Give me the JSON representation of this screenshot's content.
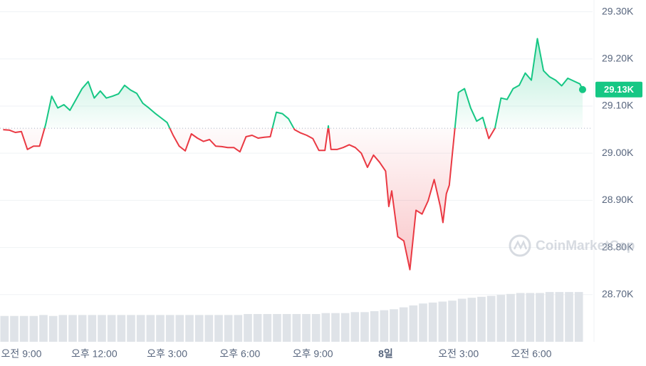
{
  "chart_data": {
    "type": "line",
    "xlim": [
      8.12,
      32.17
    ],
    "xticks": [
      {
        "value": 9,
        "label": "오전 9:00"
      },
      {
        "value": 12,
        "label": "오후 12:00"
      },
      {
        "value": 15,
        "label": "오후 3:00"
      },
      {
        "value": 18,
        "label": "오후 6:00"
      },
      {
        "value": 21,
        "label": "오후 9:00"
      },
      {
        "value": 24,
        "label": "8일"
      },
      {
        "value": 27,
        "label": "오전 3:00"
      },
      {
        "value": 30,
        "label": "오전 6:00"
      }
    ],
    "ylim": [
      28600,
      29325
    ],
    "yticks": [
      {
        "value": 29300,
        "label": "29.30K"
      },
      {
        "value": 29200,
        "label": "29.20K"
      },
      {
        "value": 29100,
        "label": "29.10K"
      },
      {
        "value": 29000,
        "label": "29.00K"
      },
      {
        "value": 28900,
        "label": "28.90K"
      },
      {
        "value": 28800,
        "label": "28.80K"
      },
      {
        "value": 28700,
        "label": "28.70K"
      }
    ],
    "y2lim": [
      0,
      100
    ],
    "grid": true,
    "reference_value": 29053,
    "last_price_label": "29.13K",
    "watermark": "CoinMarketCap",
    "series": [
      {
        "color_up": "#16c784",
        "color_down": "#ea3943",
        "x": [
          8.25,
          8.5,
          8.75,
          9,
          9.25,
          9.5,
          9.75,
          10,
          10.25,
          10.5,
          10.75,
          11,
          11.25,
          11.5,
          11.75,
          12,
          12.25,
          12.5,
          12.75,
          13,
          13.25,
          13.5,
          13.75,
          14,
          14.25,
          14.5,
          14.75,
          15,
          15.25,
          15.5,
          15.75,
          16,
          16.25,
          16.5,
          16.75,
          17,
          17.25,
          17.5,
          17.75,
          18,
          18.25,
          18.5,
          18.75,
          19,
          19.25,
          19.5,
          19.75,
          20,
          20.25,
          20.5,
          20.75,
          21,
          21.25,
          21.5,
          21.64,
          21.75,
          22,
          22.25,
          22.5,
          22.75,
          23,
          23.25,
          23.5,
          23.75,
          24,
          24.13,
          24.25,
          24.5,
          24.75,
          25,
          25.25,
          25.5,
          25.75,
          26,
          26.25,
          26.36,
          26.5,
          26.62,
          26.75,
          27,
          27.25,
          27.5,
          27.75,
          28,
          28.25,
          28.5,
          28.75,
          29,
          29.25,
          29.5,
          29.75,
          30,
          30.25,
          30.5,
          30.75,
          31,
          31.25,
          31.5,
          31.75,
          32,
          32.11
        ],
        "values": [
          29050,
          29049,
          29044,
          29046,
          29008,
          29015,
          29015,
          29061,
          29121,
          29096,
          29103,
          29091,
          29114,
          29137,
          29152,
          29117,
          29132,
          29117,
          29121,
          29126,
          29144,
          29134,
          29127,
          29106,
          29096,
          29085,
          29075,
          29065,
          29038,
          29015,
          29005,
          29041,
          29032,
          29025,
          29029,
          29015,
          29014,
          29012,
          29012,
          29003,
          29035,
          29038,
          29032,
          29034,
          29035,
          29087,
          29084,
          29073,
          29050,
          29043,
          29038,
          29031,
          29006,
          29006,
          29058,
          29008,
          29008,
          29012,
          29018,
          29012,
          29000,
          28970,
          28996,
          28981,
          28962,
          28887,
          28920,
          28823,
          28814,
          28753,
          28879,
          28871,
          28899,
          28944,
          28887,
          28853,
          28914,
          28932,
          29000,
          29129,
          29137,
          29096,
          29068,
          29076,
          29031,
          29053,
          29117,
          29114,
          29137,
          29144,
          29170,
          29155,
          29243,
          29175,
          29162,
          29155,
          29143,
          29159,
          29153,
          29147,
          29135
        ]
      },
      {
        "axis": "y2",
        "color": "#dfe3e8",
        "values": [
          27,
          27,
          27,
          27,
          28,
          27,
          28,
          28,
          28,
          28,
          28,
          28,
          28,
          28,
          28,
          28,
          28,
          28,
          28,
          28,
          28,
          28,
          28,
          28,
          28,
          29,
          29,
          29,
          29,
          29,
          29,
          29,
          29,
          30,
          30,
          30,
          31,
          31,
          32,
          33,
          34,
          36,
          38,
          40,
          41,
          42,
          43,
          45,
          46,
          47,
          48,
          49,
          50,
          51,
          51,
          51,
          52,
          52,
          52,
          52
        ]
      }
    ]
  }
}
